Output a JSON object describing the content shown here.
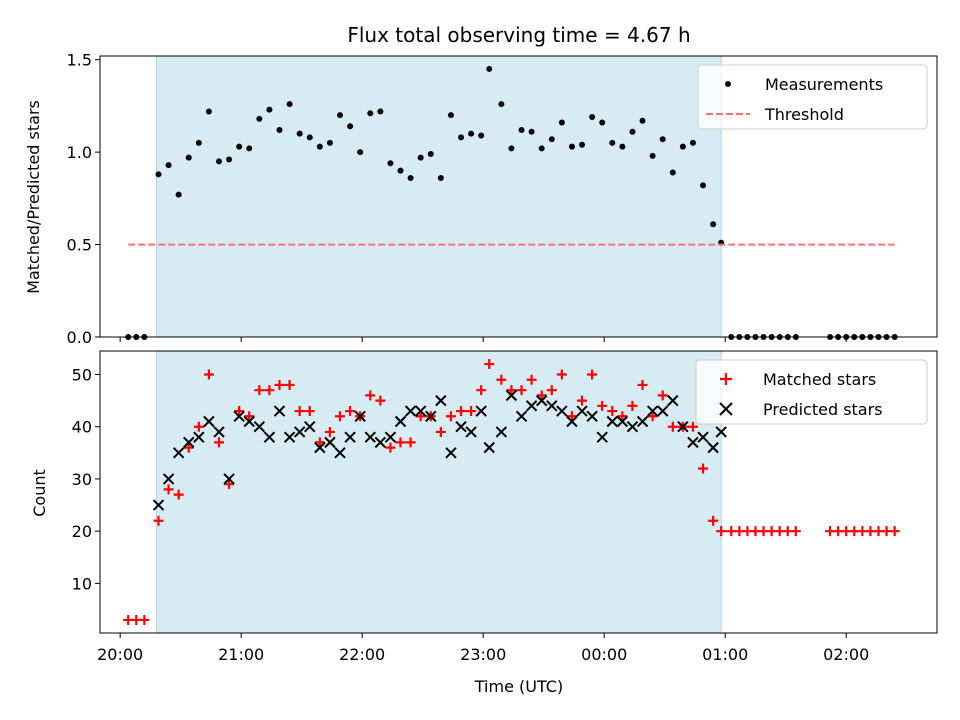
{
  "chart_data": [
    {
      "type": "scatter",
      "title": "Flux total observing time = 4.67 h",
      "xlabel": "",
      "ylabel": "Matched/Predicted stars",
      "xlim": [
        "19:50",
        "02:45"
      ],
      "ylim": [
        0,
        1.52
      ],
      "yticks": [
        "0.0",
        "0.5",
        "1.0",
        "1.5"
      ],
      "shaded_region": [
        "20:18",
        "00:58"
      ],
      "legend_position": "upper right",
      "series": [
        {
          "name": "Measurements",
          "marker": "dot",
          "color": "#000000",
          "points": [
            [
              "20:04",
              0.0
            ],
            [
              "20:08",
              0.0
            ],
            [
              "20:12",
              0.0
            ],
            [
              "20:19",
              0.88
            ],
            [
              "20:24",
              0.93
            ],
            [
              "20:29",
              0.77
            ],
            [
              "20:34",
              0.97
            ],
            [
              "20:39",
              1.05
            ],
            [
              "20:44",
              1.22
            ],
            [
              "20:49",
              0.95
            ],
            [
              "20:54",
              0.96
            ],
            [
              "20:59",
              1.03
            ],
            [
              "21:04",
              1.02
            ],
            [
              "21:09",
              1.18
            ],
            [
              "21:14",
              1.23
            ],
            [
              "21:19",
              1.12
            ],
            [
              "21:24",
              1.26
            ],
            [
              "21:29",
              1.1
            ],
            [
              "21:34",
              1.08
            ],
            [
              "21:39",
              1.03
            ],
            [
              "21:44",
              1.05
            ],
            [
              "21:49",
              1.2
            ],
            [
              "21:54",
              1.14
            ],
            [
              "21:59",
              1.0
            ],
            [
              "22:04",
              1.21
            ],
            [
              "22:09",
              1.22
            ],
            [
              "22:14",
              0.94
            ],
            [
              "22:19",
              0.9
            ],
            [
              "22:24",
              0.86
            ],
            [
              "22:29",
              0.97
            ],
            [
              "22:34",
              0.99
            ],
            [
              "22:39",
              0.86
            ],
            [
              "22:44",
              1.2
            ],
            [
              "22:49",
              1.08
            ],
            [
              "22:54",
              1.1
            ],
            [
              "22:59",
              1.09
            ],
            [
              "23:03",
              1.45
            ],
            [
              "23:09",
              1.26
            ],
            [
              "23:14",
              1.02
            ],
            [
              "23:19",
              1.12
            ],
            [
              "23:24",
              1.11
            ],
            [
              "23:29",
              1.02
            ],
            [
              "23:34",
              1.07
            ],
            [
              "23:39",
              1.16
            ],
            [
              "23:44",
              1.03
            ],
            [
              "23:49",
              1.04
            ],
            [
              "23:54",
              1.19
            ],
            [
              "23:59",
              1.16
            ],
            [
              "00:04",
              1.05
            ],
            [
              "00:09",
              1.03
            ],
            [
              "00:14",
              1.11
            ],
            [
              "00:19",
              1.17
            ],
            [
              "00:24",
              0.98
            ],
            [
              "00:29",
              1.07
            ],
            [
              "00:34",
              0.89
            ],
            [
              "00:39",
              1.03
            ],
            [
              "00:44",
              1.05
            ],
            [
              "00:49",
              0.82
            ],
            [
              "00:54",
              0.61
            ],
            [
              "00:58",
              0.51
            ],
            [
              "01:03",
              0.0
            ],
            [
              "01:07",
              0.0
            ],
            [
              "01:11",
              0.0
            ],
            [
              "01:15",
              0.0
            ],
            [
              "01:19",
              0.0
            ],
            [
              "01:23",
              0.0
            ],
            [
              "01:27",
              0.0
            ],
            [
              "01:31",
              0.0
            ],
            [
              "01:35",
              0.0
            ],
            [
              "01:52",
              0.0
            ],
            [
              "01:56",
              0.0
            ],
            [
              "02:00",
              0.0
            ],
            [
              "02:04",
              0.0
            ],
            [
              "02:08",
              0.0
            ],
            [
              "02:12",
              0.0
            ],
            [
              "02:16",
              0.0
            ],
            [
              "02:20",
              0.0
            ],
            [
              "02:24",
              0.0
            ]
          ]
        },
        {
          "name": "Threshold",
          "line": "dashed",
          "color": "#ff7070",
          "points": [
            [
              "20:04",
              0.5
            ],
            [
              "02:24",
              0.5
            ]
          ]
        }
      ]
    },
    {
      "type": "scatter",
      "title": "",
      "xlabel": "Time (UTC)",
      "ylabel": "Count",
      "xlim": [
        "19:50",
        "02:45"
      ],
      "ylim": [
        0.5,
        54.5
      ],
      "yticks": [
        "10",
        "20",
        "30",
        "40",
        "50"
      ],
      "xticks": [
        "20:00",
        "21:00",
        "22:00",
        "23:00",
        "00:00",
        "01:00",
        "02:00"
      ],
      "shaded_region": [
        "20:18",
        "00:58"
      ],
      "legend_position": "upper right",
      "series": [
        {
          "name": "Matched stars",
          "marker": "plus",
          "color": "#ff0000",
          "points": [
            [
              "20:04",
              3
            ],
            [
              "20:08",
              3
            ],
            [
              "20:12",
              3
            ],
            [
              "20:19",
              22
            ],
            [
              "20:24",
              28
            ],
            [
              "20:29",
              27
            ],
            [
              "20:34",
              36
            ],
            [
              "20:39",
              40
            ],
            [
              "20:44",
              50
            ],
            [
              "20:49",
              37
            ],
            [
              "20:54",
              29
            ],
            [
              "20:59",
              43
            ],
            [
              "21:04",
              42
            ],
            [
              "21:09",
              47
            ],
            [
              "21:14",
              47
            ],
            [
              "21:19",
              48
            ],
            [
              "21:24",
              48
            ],
            [
              "21:29",
              43
            ],
            [
              "21:34",
              43
            ],
            [
              "21:39",
              37
            ],
            [
              "21:44",
              39
            ],
            [
              "21:49",
              42
            ],
            [
              "21:54",
              43
            ],
            [
              "21:59",
              42
            ],
            [
              "22:04",
              46
            ],
            [
              "22:09",
              45
            ],
            [
              "22:14",
              36
            ],
            [
              "22:19",
              37
            ],
            [
              "22:24",
              37
            ],
            [
              "22:29",
              42
            ],
            [
              "22:34",
              42
            ],
            [
              "22:39",
              39
            ],
            [
              "22:44",
              42
            ],
            [
              "22:49",
              43
            ],
            [
              "22:54",
              43
            ],
            [
              "22:59",
              47
            ],
            [
              "23:03",
              52
            ],
            [
              "23:09",
              49
            ],
            [
              "23:14",
              47
            ],
            [
              "23:19",
              47
            ],
            [
              "23:24",
              49
            ],
            [
              "23:29",
              46
            ],
            [
              "23:34",
              47
            ],
            [
              "23:39",
              50
            ],
            [
              "23:44",
              42
            ],
            [
              "23:49",
              45
            ],
            [
              "23:54",
              50
            ],
            [
              "23:59",
              44
            ],
            [
              "00:04",
              43
            ],
            [
              "00:09",
              42
            ],
            [
              "00:14",
              44
            ],
            [
              "00:19",
              48
            ],
            [
              "00:24",
              42
            ],
            [
              "00:29",
              46
            ],
            [
              "00:34",
              40
            ],
            [
              "00:39",
              40
            ],
            [
              "00:44",
              40
            ],
            [
              "00:49",
              32
            ],
            [
              "00:54",
              22
            ],
            [
              "00:58",
              20
            ],
            [
              "01:03",
              20
            ],
            [
              "01:07",
              20
            ],
            [
              "01:11",
              20
            ],
            [
              "01:15",
              20
            ],
            [
              "01:19",
              20
            ],
            [
              "01:23",
              20
            ],
            [
              "01:27",
              20
            ],
            [
              "01:31",
              20
            ],
            [
              "01:35",
              20
            ],
            [
              "01:52",
              20
            ],
            [
              "01:56",
              20
            ],
            [
              "02:00",
              20
            ],
            [
              "02:04",
              20
            ],
            [
              "02:08",
              20
            ],
            [
              "02:12",
              20
            ],
            [
              "02:16",
              20
            ],
            [
              "02:20",
              20
            ],
            [
              "02:24",
              20
            ]
          ]
        },
        {
          "name": "Predicted stars",
          "marker": "x",
          "color": "#000000",
          "points": [
            [
              "20:19",
              25
            ],
            [
              "20:24",
              30
            ],
            [
              "20:29",
              35
            ],
            [
              "20:34",
              37
            ],
            [
              "20:39",
              38
            ],
            [
              "20:44",
              41
            ],
            [
              "20:49",
              39
            ],
            [
              "20:54",
              30
            ],
            [
              "20:59",
              42
            ],
            [
              "21:04",
              41
            ],
            [
              "21:09",
              40
            ],
            [
              "21:14",
              38
            ],
            [
              "21:19",
              43
            ],
            [
              "21:24",
              38
            ],
            [
              "21:29",
              39
            ],
            [
              "21:34",
              40
            ],
            [
              "21:39",
              36
            ],
            [
              "21:44",
              37
            ],
            [
              "21:49",
              35
            ],
            [
              "21:54",
              38
            ],
            [
              "21:59",
              42
            ],
            [
              "22:04",
              38
            ],
            [
              "22:09",
              37
            ],
            [
              "22:14",
              38
            ],
            [
              "22:19",
              41
            ],
            [
              "22:24",
              43
            ],
            [
              "22:29",
              43
            ],
            [
              "22:34",
              42
            ],
            [
              "22:39",
              45
            ],
            [
              "22:44",
              35
            ],
            [
              "22:49",
              40
            ],
            [
              "22:54",
              39
            ],
            [
              "22:59",
              43
            ],
            [
              "23:03",
              36
            ],
            [
              "23:09",
              39
            ],
            [
              "23:14",
              46
            ],
            [
              "23:19",
              42
            ],
            [
              "23:24",
              44
            ],
            [
              "23:29",
              45
            ],
            [
              "23:34",
              44
            ],
            [
              "23:39",
              43
            ],
            [
              "23:44",
              41
            ],
            [
              "23:49",
              43
            ],
            [
              "23:54",
              42
            ],
            [
              "23:59",
              38
            ],
            [
              "00:04",
              41
            ],
            [
              "00:09",
              41
            ],
            [
              "00:14",
              40
            ],
            [
              "00:19",
              41
            ],
            [
              "00:24",
              43
            ],
            [
              "00:29",
              43
            ],
            [
              "00:34",
              45
            ],
            [
              "00:39",
              40
            ],
            [
              "00:44",
              37
            ],
            [
              "00:49",
              38
            ],
            [
              "00:54",
              36
            ],
            [
              "00:58",
              39
            ]
          ]
        }
      ]
    }
  ]
}
